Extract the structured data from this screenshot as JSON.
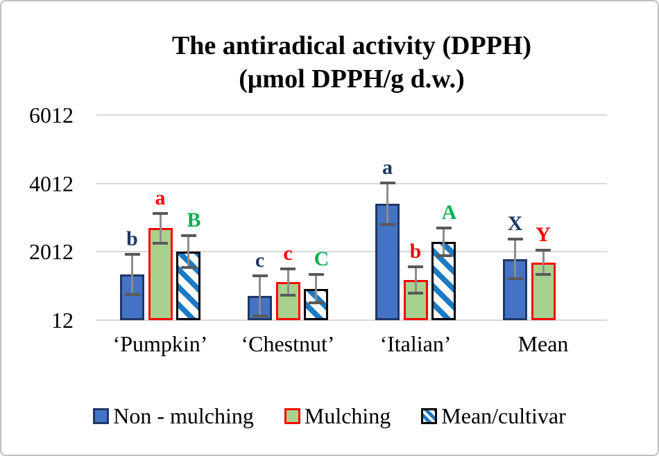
{
  "figure": {
    "border_color": "#BFBFBF",
    "background": "#FFFFFF",
    "gridline_color": "#D9D9D9",
    "error_bar_line_color": "#8C8C8C",
    "error_bar_cap_color": "#595959"
  },
  "chart_data": {
    "type": "bar",
    "title_line1": "The antiradical activity (DPPH)",
    "title_line2": "(μmol DPPH/g d.w.)",
    "categories": [
      "‘Pumpkin’",
      "‘Chestnut’",
      "‘Italian’",
      "Mean"
    ],
    "y_ticks": [
      12,
      2012,
      4012,
      6012
    ],
    "ylim": [
      12,
      6012
    ],
    "grid": true,
    "legend_position": "bottom",
    "series": [
      {
        "name": "Non - mulching",
        "fill": "#4472C4",
        "border": "#1F3864",
        "letter_color": "#1F3864",
        "values": [
          1350,
          720,
          3420,
          1800
        ],
        "errors": [
          590,
          590,
          610,
          580
        ],
        "letters": [
          "b",
          "c",
          "a",
          "X"
        ]
      },
      {
        "name": "Mulching",
        "fill": "#A9D18E",
        "border": "#FF0000",
        "letter_color": "#FF0000",
        "values": [
          2700,
          1130,
          1190,
          1700
        ],
        "errors": [
          430,
          390,
          390,
          350
        ],
        "letters": [
          "a",
          "c",
          "b",
          "Y"
        ]
      },
      {
        "name": "Mean/cultivar",
        "fill": "stripes",
        "stripe_color": "#1B7AC4",
        "border": "#000000",
        "letter_color": "#00B050",
        "values": [
          2025,
          930,
          2300,
          null
        ],
        "errors": [
          470,
          420,
          410,
          null
        ],
        "letters": [
          "B",
          "C",
          "A",
          ""
        ]
      }
    ]
  }
}
